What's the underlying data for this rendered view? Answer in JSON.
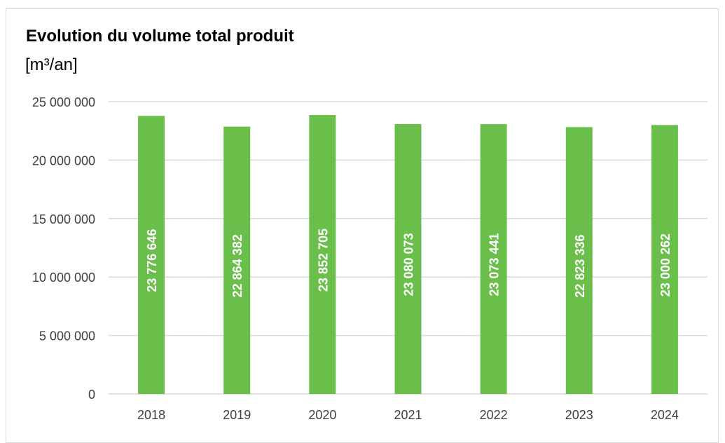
{
  "chart_data": {
    "type": "bar",
    "title": "Evolution du volume total produit",
    "unit_label": "[m³/an]",
    "xlabel": "",
    "ylabel": "[m³/an]",
    "categories": [
      "2018",
      "2019",
      "2020",
      "2021",
      "2022",
      "2023",
      "2024"
    ],
    "values": [
      23776646,
      22864382,
      23852705,
      23080073,
      23073441,
      22823336,
      23000262
    ],
    "value_labels": [
      "23 776 646",
      "22 864 382",
      "23 852 705",
      "23 080 073",
      "23 073 441",
      "22 823 336",
      "23 000 262"
    ],
    "ylim": [
      0,
      25000000
    ],
    "yticks": [
      0,
      5000000,
      10000000,
      15000000,
      20000000,
      25000000
    ],
    "ytick_labels": [
      "0",
      "5 000 000",
      "10 000 000",
      "15 000 000",
      "20 000 000",
      "25 000 000"
    ],
    "grid": true,
    "legend": "none",
    "bar_color": "#6abf4b",
    "grid_color": "#d9d9d9",
    "label_color": "#ffffff"
  }
}
